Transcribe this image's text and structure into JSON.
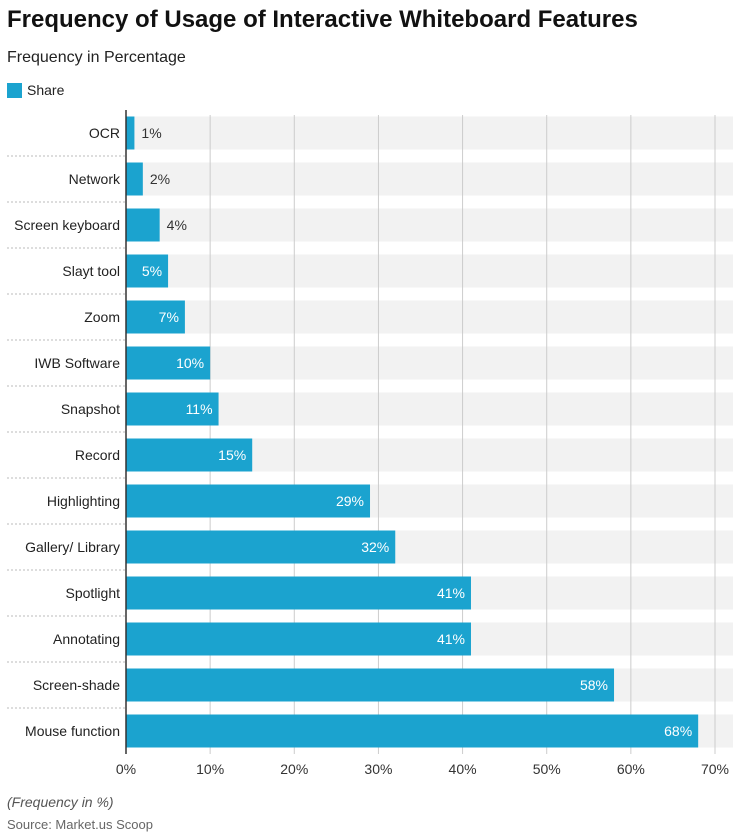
{
  "chart_data": {
    "type": "bar",
    "orientation": "horizontal",
    "title": "Frequency of Usage of Interactive Whiteboard Features",
    "subtitle": "Frequency in Percentage",
    "categories": [
      "OCR",
      "Network",
      "Screen keyboard",
      "Slayt tool",
      "Zoom",
      "IWB Software",
      "Snapshot",
      "Record",
      "Highlighting",
      "Gallery/ Library",
      "Spotlight",
      "Annotating",
      "Screen-shade",
      "Mouse function"
    ],
    "series": [
      {
        "name": "Share",
        "values": [
          1,
          2,
          4,
          5,
          7,
          10,
          11,
          15,
          29,
          32,
          41,
          41,
          58,
          68
        ],
        "labels": [
          "1%",
          "2%",
          "4%",
          "5%",
          "7%",
          "10%",
          "11%",
          "15%",
          "29%",
          "32%",
          "41%",
          "41%",
          "58%",
          "68%"
        ]
      }
    ],
    "xlim": [
      0,
      70
    ],
    "xticks": [
      0,
      10,
      20,
      30,
      40,
      50,
      60,
      70
    ],
    "xtick_labels": [
      "0%",
      "10%",
      "20%",
      "30%",
      "40%",
      "50%",
      "60%",
      "70%"
    ],
    "grid": true,
    "legend_position": "top-left",
    "footnote": "(Frequency in %)",
    "source": "Source: Market.us Scoop"
  },
  "colors": {
    "bar": "#1ba3cf",
    "row_background": "#f2f2f2",
    "grid": "#cccccc",
    "label_inside": "#ffffff",
    "label_outside": "#333333"
  }
}
